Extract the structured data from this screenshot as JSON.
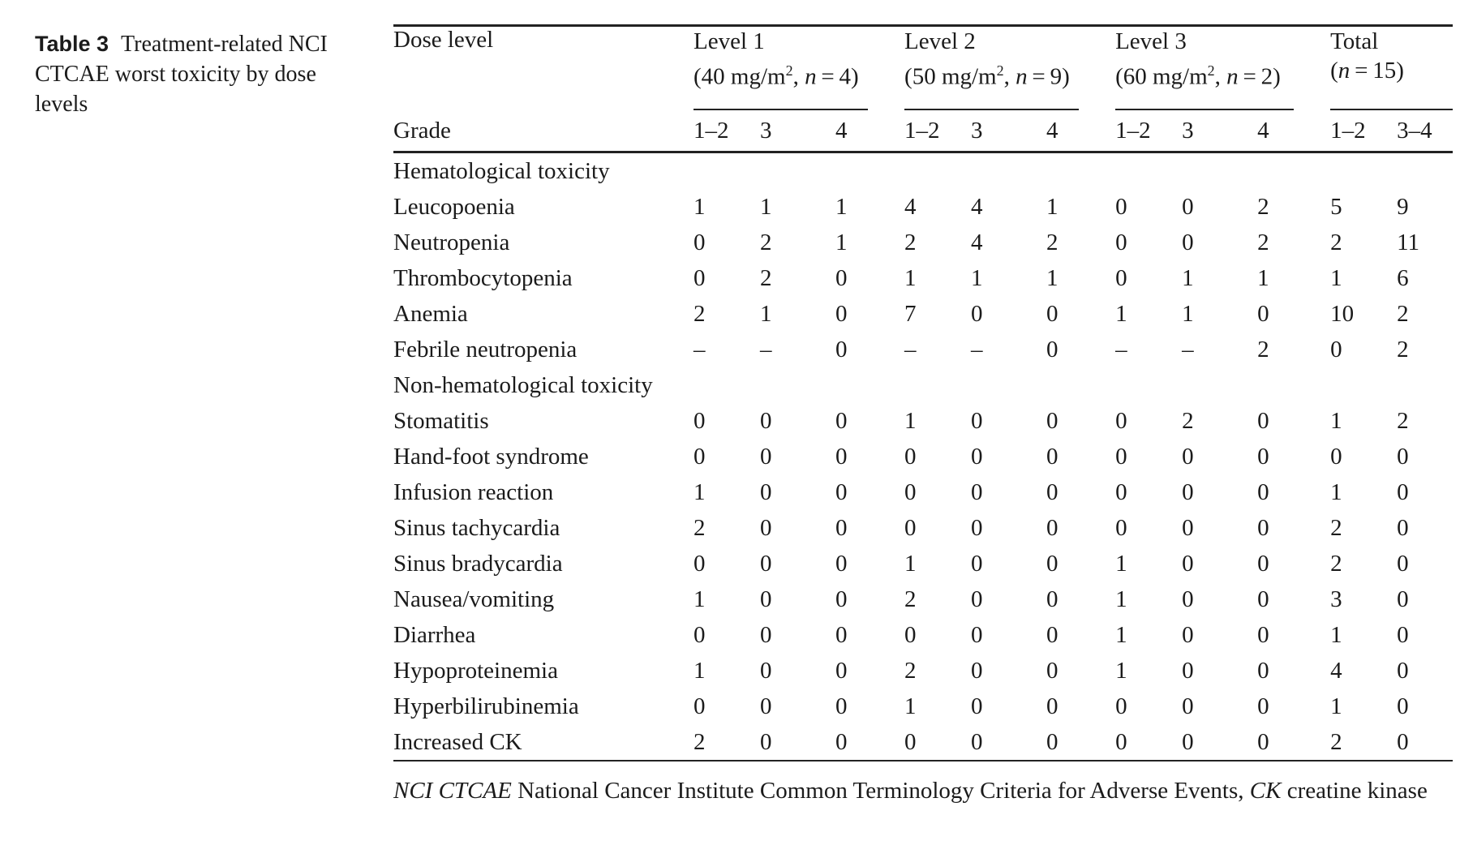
{
  "caption": {
    "label": "Table 3",
    "text": "Treatment-related NCI CTCAE worst toxicity by dose levels"
  },
  "table": {
    "corner_header": "Dose level",
    "grade_header": "Grade",
    "groups": [
      {
        "title": "Level 1",
        "subtitle": [
          {
            "t": "(40 mg/m"
          },
          {
            "t": "2",
            "sup": true
          },
          {
            "t": ", "
          },
          {
            "t": "n",
            "i": true
          },
          {
            "t": " = 4)"
          }
        ],
        "grades": [
          "1–2",
          "3",
          "4"
        ]
      },
      {
        "title": "Level 2",
        "subtitle": [
          {
            "t": "(50 mg/m"
          },
          {
            "t": "2",
            "sup": true
          },
          {
            "t": ", "
          },
          {
            "t": "n",
            "i": true
          },
          {
            "t": " = 9)"
          }
        ],
        "grades": [
          "1–2",
          "3",
          "4"
        ]
      },
      {
        "title": "Level 3",
        "subtitle": [
          {
            "t": "(60 mg/m"
          },
          {
            "t": "2",
            "sup": true
          },
          {
            "t": ", "
          },
          {
            "t": "n",
            "i": true
          },
          {
            "t": " = 2)"
          }
        ],
        "grades": [
          "1–2",
          "3",
          "4"
        ]
      },
      {
        "title": "Total",
        "subtitle": [
          {
            "t": "("
          },
          {
            "t": "n",
            "i": true
          },
          {
            "t": " = 15)"
          }
        ],
        "grades": [
          "1–2",
          "3–4"
        ]
      }
    ],
    "sections": [
      {
        "header": "Hematological toxicity",
        "rows": [
          {
            "label": "Leucopoenia",
            "values": [
              "1",
              "1",
              "1",
              "4",
              "4",
              "1",
              "0",
              "0",
              "2",
              "5",
              "9"
            ]
          },
          {
            "label": "Neutropenia",
            "values": [
              "0",
              "2",
              "1",
              "2",
              "4",
              "2",
              "0",
              "0",
              "2",
              "2",
              "11"
            ]
          },
          {
            "label": "Thrombocytopenia",
            "values": [
              "0",
              "2",
              "0",
              "1",
              "1",
              "1",
              "0",
              "1",
              "1",
              "1",
              "6"
            ]
          },
          {
            "label": "Anemia",
            "values": [
              "2",
              "1",
              "0",
              "7",
              "0",
              "0",
              "1",
              "1",
              "0",
              "10",
              "2"
            ]
          },
          {
            "label": "Febrile neutropenia",
            "values": [
              "–",
              "–",
              "0",
              "–",
              "–",
              "0",
              "–",
              "–",
              "2",
              "0",
              "2"
            ]
          }
        ]
      },
      {
        "header": "Non-hematological toxicity",
        "rows": [
          {
            "label": "Stomatitis",
            "values": [
              "0",
              "0",
              "0",
              "1",
              "0",
              "0",
              "0",
              "2",
              "0",
              "1",
              "2"
            ]
          },
          {
            "label": "Hand-foot syndrome",
            "values": [
              "0",
              "0",
              "0",
              "0",
              "0",
              "0",
              "0",
              "0",
              "0",
              "0",
              "0"
            ]
          },
          {
            "label": "Infusion reaction",
            "values": [
              "1",
              "0",
              "0",
              "0",
              "0",
              "0",
              "0",
              "0",
              "0",
              "1",
              "0"
            ]
          },
          {
            "label": "Sinus tachycardia",
            "values": [
              "2",
              "0",
              "0",
              "0",
              "0",
              "0",
              "0",
              "0",
              "0",
              "2",
              "0"
            ]
          },
          {
            "label": "Sinus bradycardia",
            "values": [
              "0",
              "0",
              "0",
              "1",
              "0",
              "0",
              "1",
              "0",
              "0",
              "2",
              "0"
            ]
          },
          {
            "label": "Nausea/vomiting",
            "values": [
              "1",
              "0",
              "0",
              "2",
              "0",
              "0",
              "1",
              "0",
              "0",
              "3",
              "0"
            ]
          },
          {
            "label": "Diarrhea",
            "values": [
              "0",
              "0",
              "0",
              "0",
              "0",
              "0",
              "1",
              "0",
              "0",
              "1",
              "0"
            ]
          },
          {
            "label": "Hypoproteinemia",
            "values": [
              "1",
              "0",
              "0",
              "2",
              "0",
              "0",
              "1",
              "0",
              "0",
              "4",
              "0"
            ]
          },
          {
            "label": "Hyperbilirubinemia",
            "values": [
              "0",
              "0",
              "0",
              "1",
              "0",
              "0",
              "0",
              "0",
              "0",
              "1",
              "0"
            ]
          },
          {
            "label": "Increased CK",
            "values": [
              "2",
              "0",
              "0",
              "0",
              "0",
              "0",
              "0",
              "0",
              "0",
              "2",
              "0"
            ]
          }
        ]
      }
    ]
  },
  "footnote": {
    "parts": [
      {
        "t": "NCI CTCAE",
        "i": true
      },
      {
        "t": " National Cancer Institute Common Terminology Criteria for Adverse Events, "
      },
      {
        "t": "CK",
        "i": true
      },
      {
        "t": " creatine kinase"
      }
    ]
  }
}
